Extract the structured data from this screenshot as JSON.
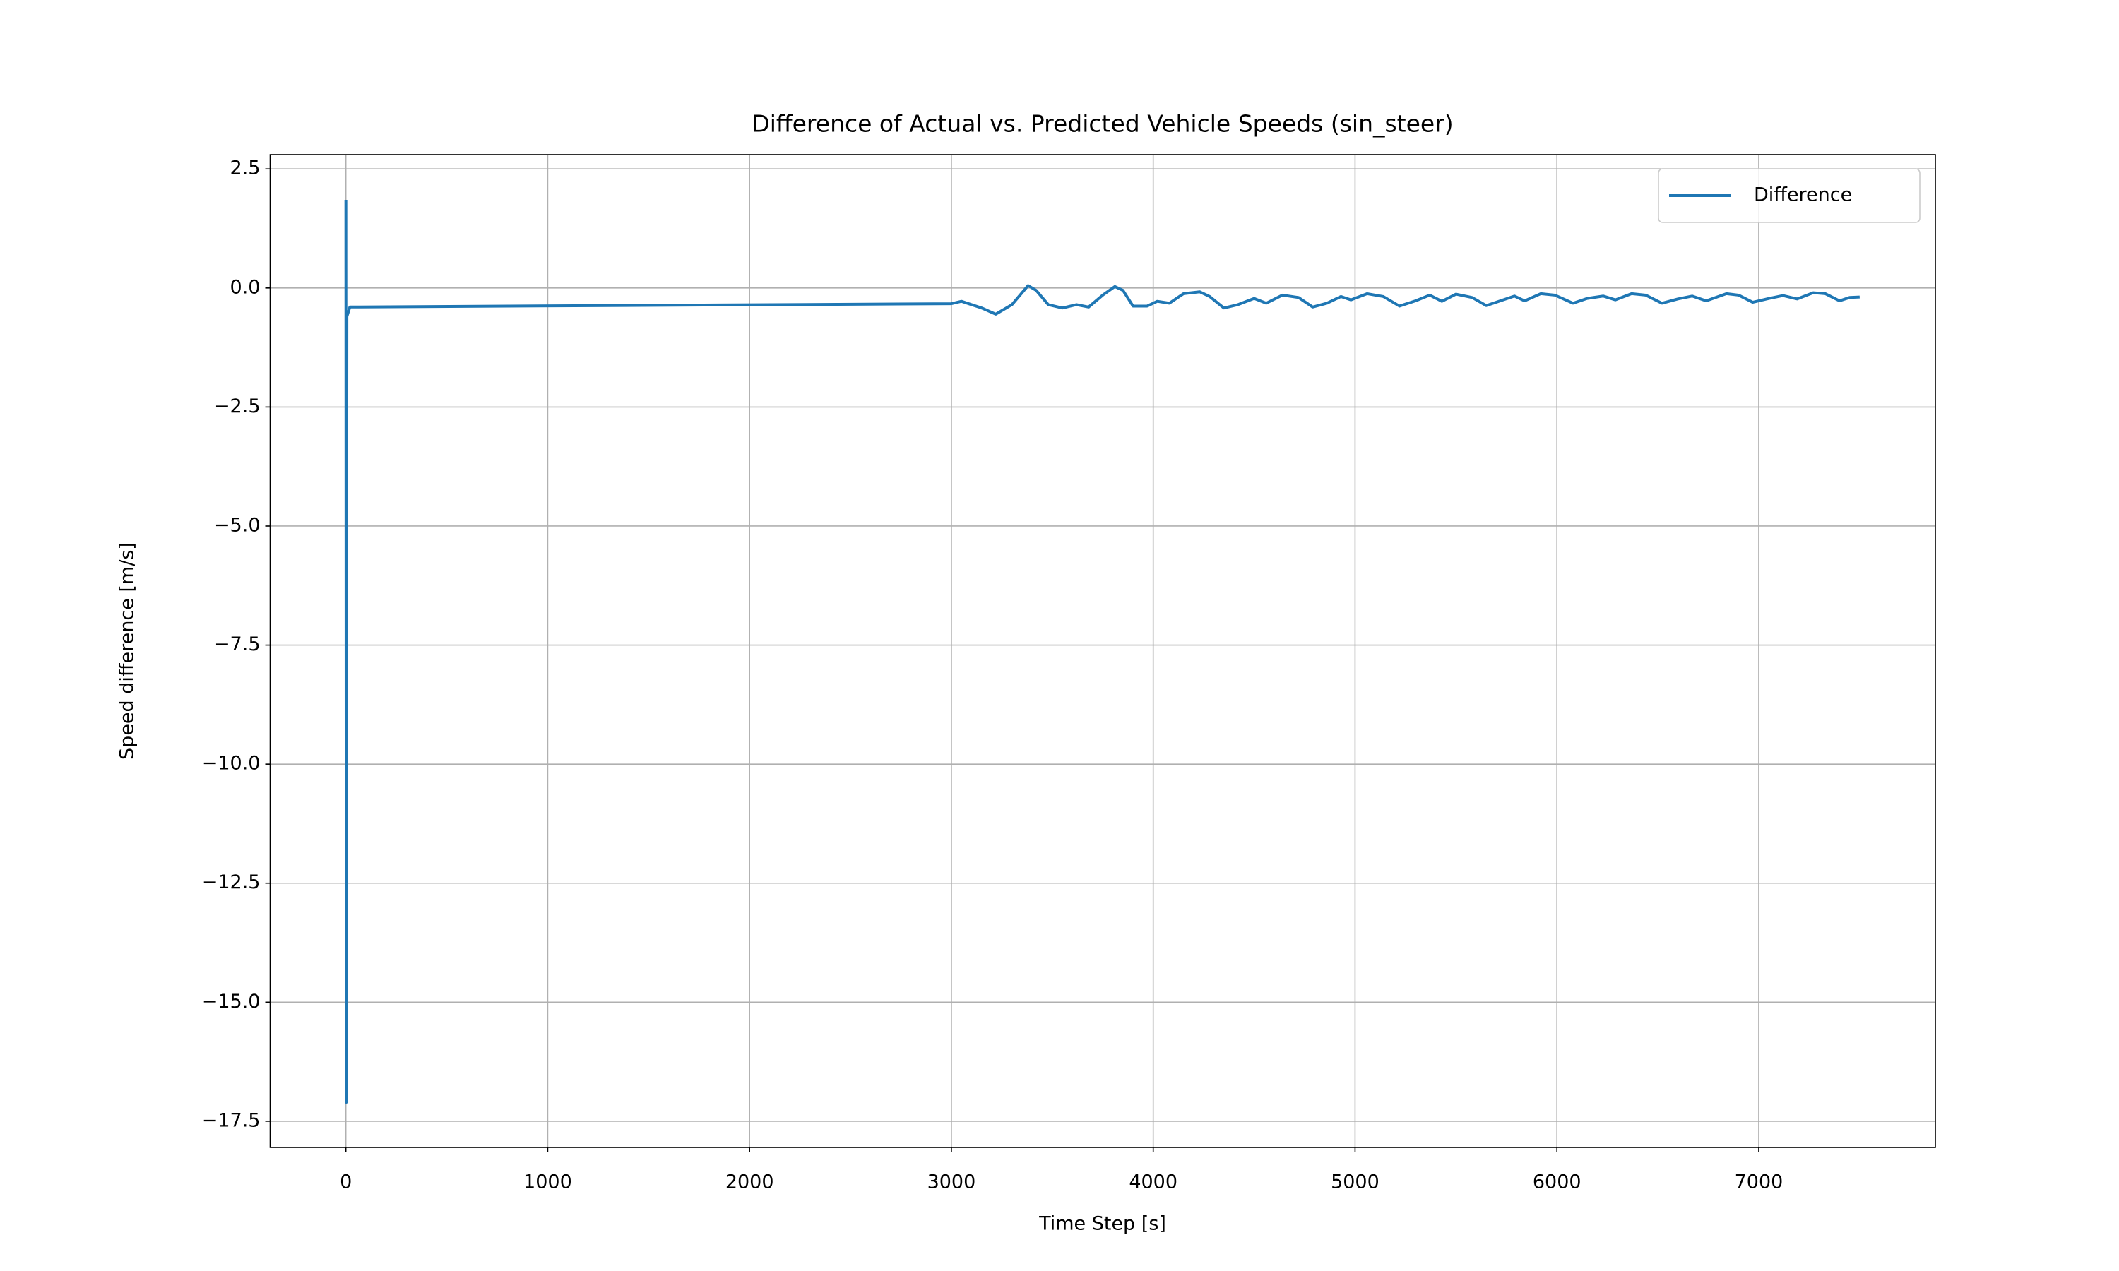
{
  "chart_data": {
    "type": "line",
    "title": "Difference of Actual vs. Predicted Vehicle Speeds (sin_steer)",
    "xlabel": "Time Step [s]",
    "ylabel": "Speed difference [m/s]",
    "x": [
      0,
      2,
      5,
      20,
      3000,
      3050,
      3100,
      3150,
      3220,
      3300,
      3380,
      3420,
      3480,
      3550,
      3620,
      3680,
      3750,
      3810,
      3850,
      3900,
      3970,
      4020,
      4080,
      4150,
      4230,
      4280,
      4350,
      4420,
      4500,
      4560,
      4640,
      4720,
      4790,
      4860,
      4930,
      4980,
      5060,
      5140,
      5220,
      5300,
      5370,
      5430,
      5500,
      5580,
      5650,
      5720,
      5790,
      5840,
      5920,
      5990,
      6080,
      6150,
      6230,
      6290,
      6370,
      6440,
      6520,
      6600,
      6670,
      6740,
      6840,
      6900,
      6970,
      7050,
      7120,
      7190,
      7270,
      7330,
      7400,
      7450,
      7500
    ],
    "series": [
      {
        "name": "Difference",
        "color": "#1f77b4",
        "values": [
          1.85,
          -17.1,
          -0.6,
          -0.4,
          -0.33,
          -0.28,
          -0.35,
          -0.42,
          -0.55,
          -0.35,
          0.05,
          -0.05,
          -0.35,
          -0.42,
          -0.35,
          -0.4,
          -0.15,
          0.03,
          -0.05,
          -0.38,
          -0.38,
          -0.28,
          -0.32,
          -0.12,
          -0.08,
          -0.18,
          -0.42,
          -0.35,
          -0.22,
          -0.32,
          -0.15,
          -0.2,
          -0.4,
          -0.32,
          -0.18,
          -0.25,
          -0.12,
          -0.18,
          -0.38,
          -0.27,
          -0.15,
          -0.28,
          -0.13,
          -0.2,
          -0.37,
          -0.27,
          -0.17,
          -0.27,
          -0.12,
          -0.15,
          -0.32,
          -0.22,
          -0.17,
          -0.25,
          -0.12,
          -0.15,
          -0.32,
          -0.23,
          -0.17,
          -0.27,
          -0.12,
          -0.15,
          -0.3,
          -0.22,
          -0.16,
          -0.23,
          -0.1,
          -0.12,
          -0.27,
          -0.2,
          -0.19
        ]
      }
    ],
    "xlim": [
      -375,
      7875
    ],
    "ylim": [
      -18.05,
      2.8
    ],
    "xticks": [
      0,
      1000,
      2000,
      3000,
      4000,
      5000,
      6000,
      7000
    ],
    "yticks": [
      {
        "value": 2.5,
        "label": "2.5"
      },
      {
        "value": 0,
        "label": "0.0"
      },
      {
        "value": -2.5,
        "label": "−2.5"
      },
      {
        "value": -5,
        "label": "−5.0"
      },
      {
        "value": -7.5,
        "label": "−7.5"
      },
      {
        "value": -10,
        "label": "−10.0"
      },
      {
        "value": -12.5,
        "label": "−12.5"
      },
      {
        "value": -15,
        "label": "−15.0"
      },
      {
        "value": -17.5,
        "label": "−17.5"
      }
    ],
    "grid": true,
    "legend": "upper right"
  }
}
